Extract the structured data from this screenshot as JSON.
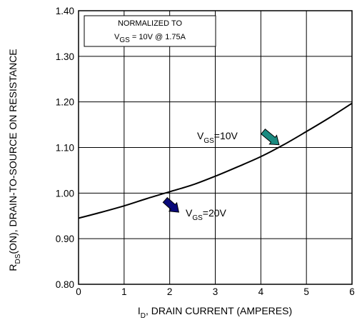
{
  "chart_data": {
    "type": "line",
    "xlabel": {
      "prefix": "I",
      "sub": "D",
      "rest": ", DRAIN CURRENT (AMPERES)"
    },
    "ylabel": {
      "prefix": "R",
      "sub": "DS",
      "rest": "(ON), DRAIN-TO-SOURCE ON RESISTANCE"
    },
    "xlim": [
      0,
      6
    ],
    "ylim": [
      0.8,
      1.4
    ],
    "xticks": [
      "0",
      "1",
      "2",
      "3",
      "4",
      "5",
      "6"
    ],
    "yticks": [
      "0.80",
      "0.90",
      "1.00",
      "1.10",
      "1.20",
      "1.30",
      "1.40"
    ],
    "grid": true,
    "series": [
      {
        "name": "VGS=10V",
        "x": [
          0,
          0.5,
          1,
          1.5,
          2,
          2.5,
          3,
          3.5,
          4,
          4.5,
          5,
          5.5,
          6
        ],
        "y": [
          0.945,
          0.958,
          0.972,
          0.988,
          1.003,
          1.018,
          1.037,
          1.058,
          1.08,
          1.106,
          1.135,
          1.165,
          1.197
        ]
      }
    ],
    "annotations": [
      {
        "prefix": "V",
        "sub": "GS",
        "rest": "=10V",
        "color": "#1a8a80",
        "arrow_from": [
          4.05,
          1.135
        ],
        "arrow_to": [
          4.4,
          1.106
        ]
      },
      {
        "prefix": "V",
        "sub": "GS",
        "rest": "=20V",
        "color": "#0a0a7a",
        "arrow_from": [
          1.9,
          0.985
        ],
        "arrow_to": [
          2.2,
          0.958
        ]
      }
    ],
    "legend_box": {
      "line1": "NORMALIZED TO",
      "line2": {
        "prefix": "V",
        "sub": "GS",
        "rest": " = 10V   @   1.75A"
      }
    }
  }
}
